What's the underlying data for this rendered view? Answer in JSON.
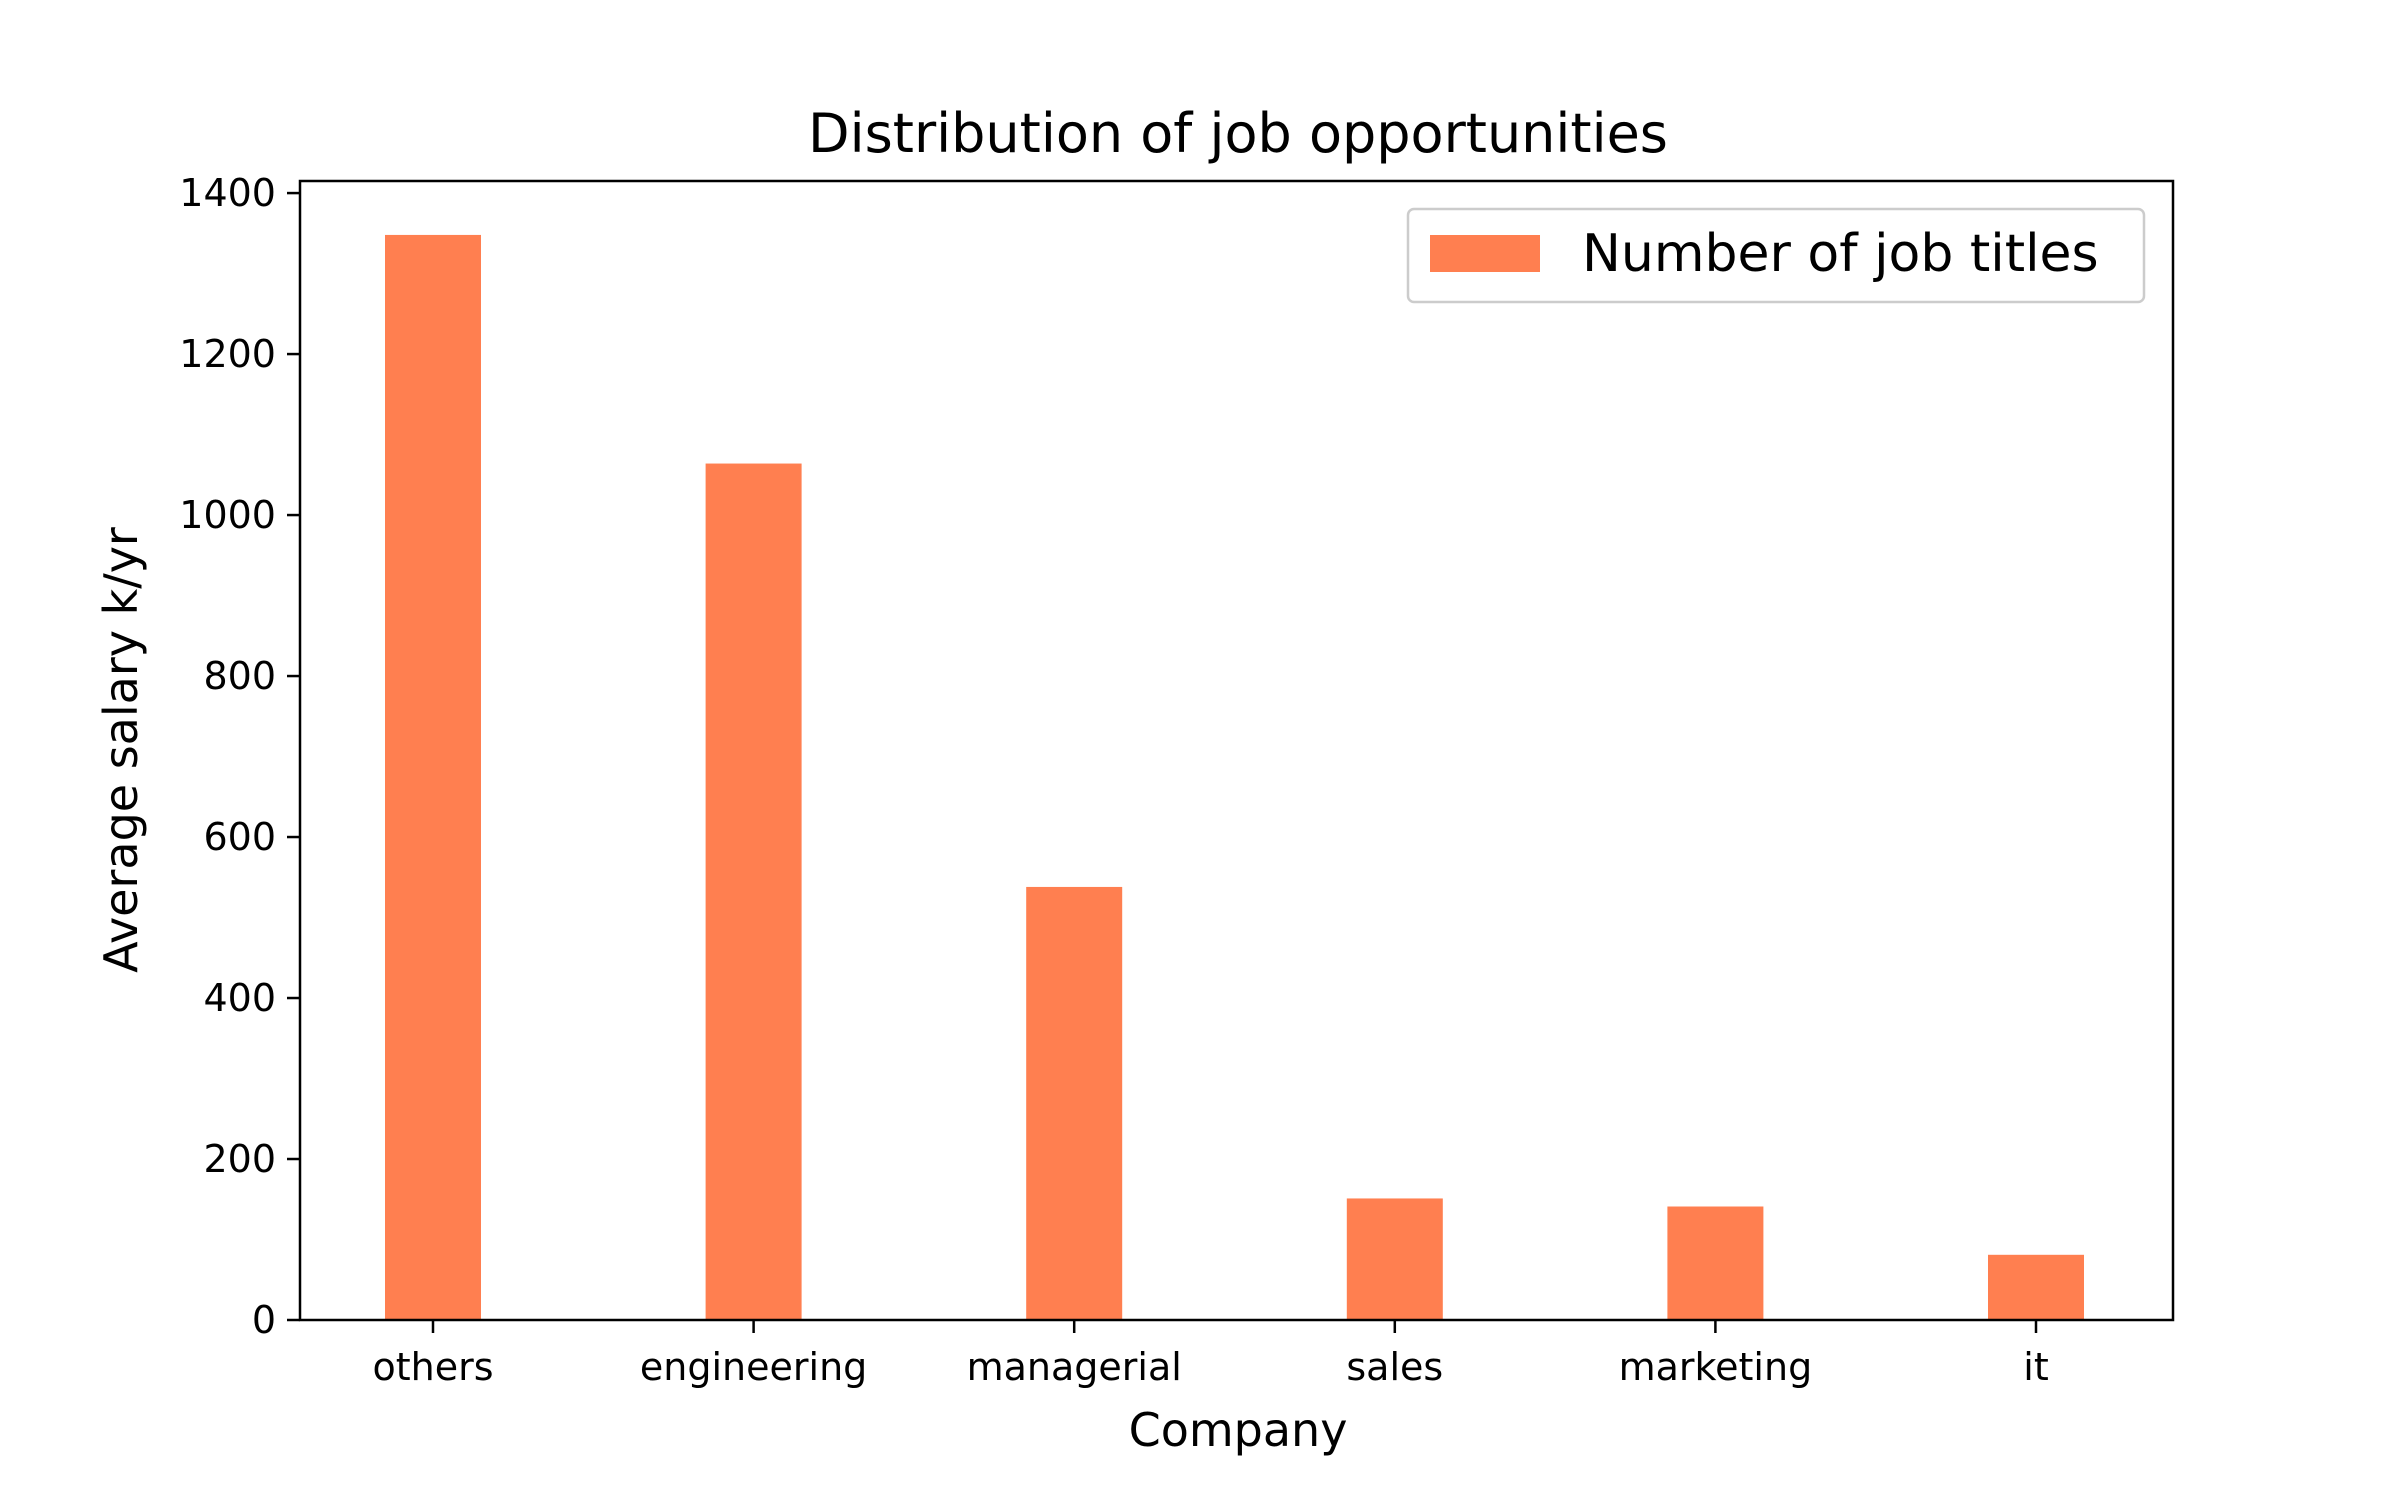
{
  "chart_data": {
    "type": "bar",
    "title": "Distribution of job opportunities",
    "xlabel": "Company",
    "ylabel": "Average salary k/yr",
    "categories": [
      "others",
      "engineering",
      "managerial",
      "sales",
      "marketing",
      "it"
    ],
    "series": [
      {
        "name": "Number of job titles",
        "values": [
          1348,
          1064,
          538,
          151,
          141,
          81
        ]
      }
    ],
    "ylim": [
      0,
      1415
    ],
    "yticks": [
      0,
      200,
      400,
      600,
      800,
      1000,
      1200,
      1400
    ],
    "ytick_labels": [
      "0",
      "200",
      "400",
      "600",
      "800",
      "1000",
      "1200",
      "1400"
    ],
    "grid": false,
    "legend_position": "top-right",
    "colors": {
      "bar": "#ff7f50",
      "axis": "#000000",
      "background": "#ffffff",
      "legend_border": "#cccccc"
    }
  }
}
